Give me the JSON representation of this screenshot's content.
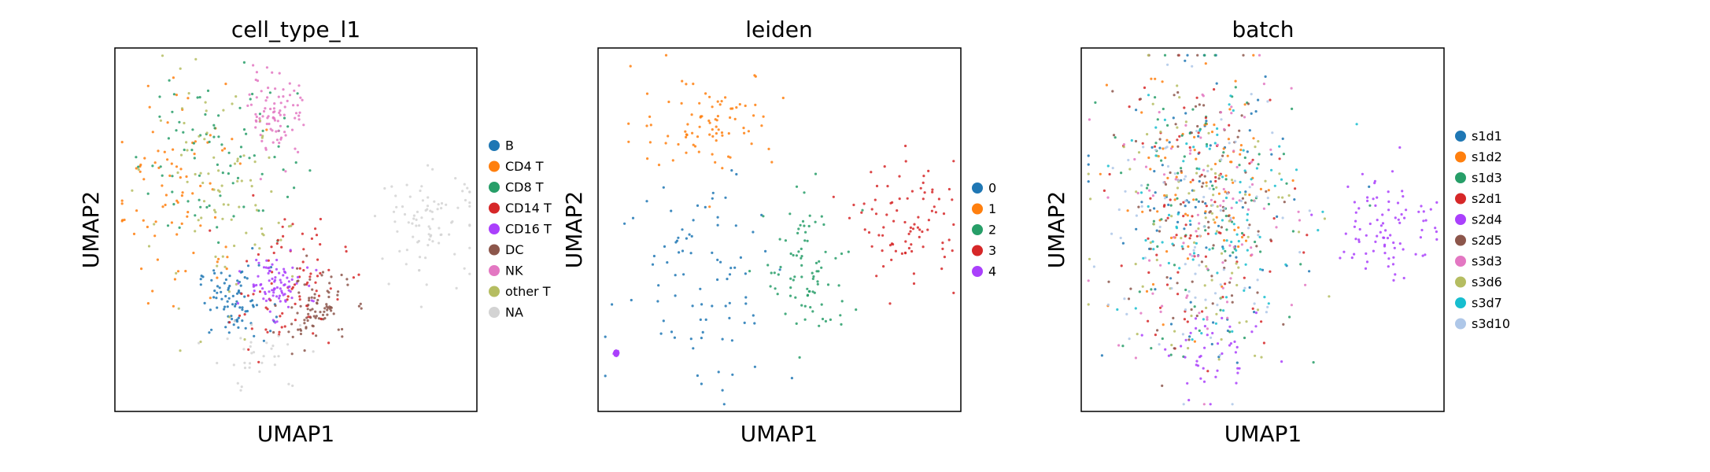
{
  "chart_data": [
    {
      "type": "scatter",
      "title": "cell_type_l1",
      "xlabel": "UMAP1",
      "ylabel": "UMAP2",
      "ticks": "none",
      "grid": false,
      "legend_position": "right",
      "series": [
        {
          "name": "B",
          "color": "#1f77b4",
          "regions": [
            {
              "x": 0.33,
              "y": 0.3,
              "sx": 0.05,
              "sy": 0.05,
              "weight": 1
            }
          ]
        },
        {
          "name": "CD4 T",
          "color": "#ff7f0e",
          "regions": [
            {
              "x": 0.18,
              "y": 0.6,
              "sx": 0.09,
              "sy": 0.15,
              "weight": 1
            }
          ]
        },
        {
          "name": "CD8 T",
          "color": "#279e68",
          "regions": [
            {
              "x": 0.28,
              "y": 0.72,
              "sx": 0.11,
              "sy": 0.13,
              "weight": 1
            }
          ]
        },
        {
          "name": "CD14 T",
          "color": "#d62728",
          "regions": [
            {
              "x": 0.48,
              "y": 0.35,
              "sx": 0.08,
              "sy": 0.09,
              "weight": 1
            }
          ]
        },
        {
          "name": "CD16 T",
          "color": "#aa40fc",
          "regions": [
            {
              "x": 0.44,
              "y": 0.35,
              "sx": 0.04,
              "sy": 0.04,
              "weight": 1
            }
          ]
        },
        {
          "name": "DC",
          "color": "#8c564b",
          "regions": [
            {
              "x": 0.55,
              "y": 0.28,
              "sx": 0.05,
              "sy": 0.05,
              "weight": 1
            }
          ]
        },
        {
          "name": "NK",
          "color": "#e377c2",
          "regions": [
            {
              "x": 0.45,
              "y": 0.82,
              "sx": 0.04,
              "sy": 0.06,
              "weight": 1
            }
          ]
        },
        {
          "name": "other T",
          "color": "#b5bd61",
          "regions": [
            {
              "x": 0.28,
              "y": 0.55,
              "sx": 0.1,
              "sy": 0.15,
              "weight": 1
            }
          ]
        },
        {
          "name": "NA",
          "color": "#d3d3d3",
          "regions": [
            {
              "x": 0.87,
              "y": 0.52,
              "sx": 0.07,
              "sy": 0.07,
              "weight": 1
            },
            {
              "x": 0.4,
              "y": 0.15,
              "sx": 0.07,
              "sy": 0.05,
              "weight": 0.4
            }
          ]
        }
      ]
    },
    {
      "type": "scatter",
      "title": "leiden",
      "xlabel": "UMAP1",
      "ylabel": "UMAP2",
      "ticks": "none",
      "grid": false,
      "legend_position": "right",
      "series": [
        {
          "name": "0",
          "color": "#1f77b4",
          "regions": [
            {
              "x": 0.3,
              "y": 0.38,
              "sx": 0.12,
              "sy": 0.16,
              "weight": 1
            }
          ]
        },
        {
          "name": "1",
          "color": "#ff7f0e",
          "regions": [
            {
              "x": 0.3,
              "y": 0.8,
              "sx": 0.1,
              "sy": 0.07,
              "weight": 1
            }
          ]
        },
        {
          "name": "2",
          "color": "#279e68",
          "regions": [
            {
              "x": 0.58,
              "y": 0.38,
              "sx": 0.06,
              "sy": 0.1,
              "weight": 1
            }
          ]
        },
        {
          "name": "3",
          "color": "#d62728",
          "regions": [
            {
              "x": 0.86,
              "y": 0.52,
              "sx": 0.07,
              "sy": 0.08,
              "weight": 1
            }
          ]
        },
        {
          "name": "4",
          "color": "#aa40fc",
          "regions": [
            {
              "x": 0.05,
              "y": 0.16,
              "sx": 0.003,
              "sy": 0.003,
              "weight": 1
            }
          ]
        }
      ]
    },
    {
      "type": "scatter",
      "title": "batch",
      "xlabel": "UMAP1",
      "ylabel": "UMAP2",
      "ticks": "none",
      "grid": false,
      "legend_position": "right",
      "series": [
        {
          "name": "s1d1",
          "color": "#1f77b4",
          "regions": [
            {
              "x": 0.33,
              "y": 0.55,
              "sx": 0.13,
              "sy": 0.2,
              "weight": 1
            }
          ]
        },
        {
          "name": "s1d2",
          "color": "#ff7f0e",
          "regions": [
            {
              "x": 0.33,
              "y": 0.6,
              "sx": 0.12,
              "sy": 0.18,
              "weight": 1
            }
          ]
        },
        {
          "name": "s1d3",
          "color": "#279e68",
          "regions": [
            {
              "x": 0.33,
              "y": 0.55,
              "sx": 0.13,
              "sy": 0.2,
              "weight": 1
            }
          ]
        },
        {
          "name": "s2d1",
          "color": "#d62728",
          "regions": [
            {
              "x": 0.33,
              "y": 0.55,
              "sx": 0.13,
              "sy": 0.2,
              "weight": 1
            }
          ]
        },
        {
          "name": "s2d4",
          "color": "#aa40fc",
          "regions": [
            {
              "x": 0.85,
              "y": 0.52,
              "sx": 0.07,
              "sy": 0.08,
              "weight": 1
            },
            {
              "x": 0.38,
              "y": 0.15,
              "sx": 0.07,
              "sy": 0.05,
              "weight": 0.5
            }
          ]
        },
        {
          "name": "s2d5",
          "color": "#8c564b",
          "regions": [
            {
              "x": 0.33,
              "y": 0.55,
              "sx": 0.13,
              "sy": 0.2,
              "weight": 1
            }
          ]
        },
        {
          "name": "s3d3",
          "color": "#e377c2",
          "regions": [
            {
              "x": 0.33,
              "y": 0.55,
              "sx": 0.13,
              "sy": 0.2,
              "weight": 1
            }
          ]
        },
        {
          "name": "s3d6",
          "color": "#b5bd61",
          "regions": [
            {
              "x": 0.33,
              "y": 0.55,
              "sx": 0.13,
              "sy": 0.2,
              "weight": 1
            }
          ]
        },
        {
          "name": "s3d7",
          "color": "#17becf",
          "regions": [
            {
              "x": 0.33,
              "y": 0.55,
              "sx": 0.13,
              "sy": 0.2,
              "weight": 1
            }
          ]
        },
        {
          "name": "s3d10",
          "color": "#aec7e8",
          "regions": [
            {
              "x": 0.33,
              "y": 0.5,
              "sx": 0.14,
              "sy": 0.2,
              "weight": 1
            }
          ]
        }
      ]
    }
  ]
}
